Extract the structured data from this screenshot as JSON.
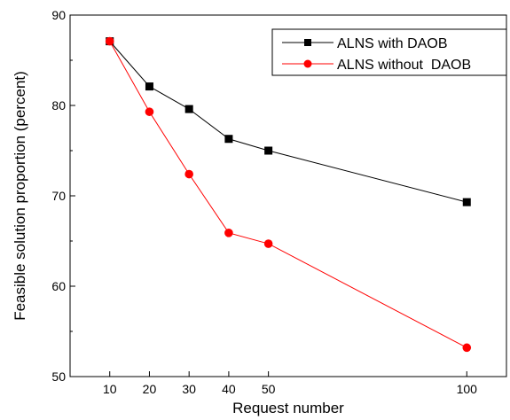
{
  "chart_data": {
    "type": "line",
    "xlabel": "Request number",
    "ylabel": "Feasible solution proportion (percent)",
    "x": [
      10,
      20,
      30,
      40,
      50,
      100
    ],
    "xticks": [
      10,
      20,
      30,
      40,
      50,
      100
    ],
    "xlim": [
      0,
      110
    ],
    "ylim": [
      50,
      90
    ],
    "yticks": [
      50,
      60,
      70,
      80,
      90
    ],
    "grid": false,
    "legend_position": "top-right",
    "series": [
      {
        "name": "ALNS with DAOB",
        "color": "#000000",
        "marker": "square",
        "values": [
          87.1,
          82.1,
          79.6,
          76.3,
          75.0,
          69.3
        ]
      },
      {
        "name": "ALNS without  DAOB",
        "color": "#ff0000",
        "marker": "circle",
        "values": [
          87.1,
          79.3,
          72.4,
          65.9,
          64.7,
          53.2
        ]
      }
    ]
  }
}
